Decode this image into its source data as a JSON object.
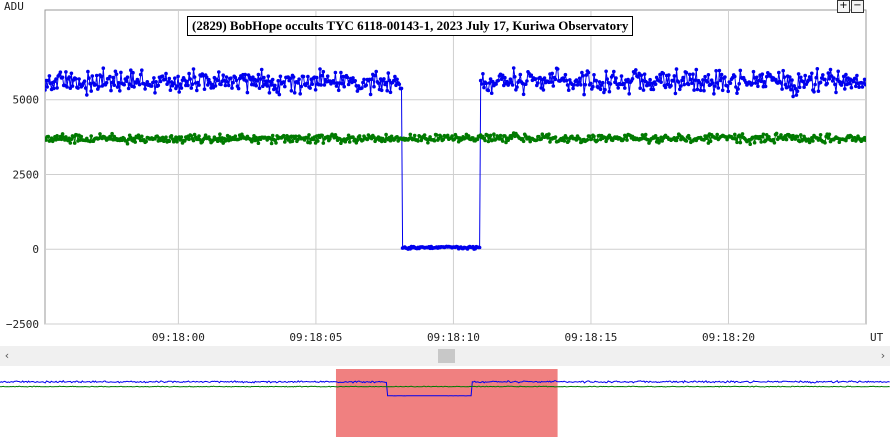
{
  "chart_data": {
    "type": "line",
    "title": "(2829) BobHope occults TYC 6118-00143-1, 2023 July 17, Kuriwa Observatory",
    "ylabel": "ADU",
    "xlabel": "UT",
    "ylim": [
      -2500,
      8000
    ],
    "y_ticks": [
      "5000",
      "2500",
      "0",
      "−2500"
    ],
    "y_tick_values": [
      5000,
      2500,
      0,
      -2500
    ],
    "x_ticks": [
      "09:18:00",
      "09:18:05",
      "09:18:10",
      "09:18:15",
      "09:18:20"
    ],
    "x_tick_seconds": [
      0,
      5,
      10,
      15,
      20
    ],
    "xlim_seconds": [
      -4.85,
      25.0
    ],
    "grid": true,
    "series": [
      {
        "color": "#0000ee",
        "baseline": 5600,
        "noise": 330,
        "drop_start_s": 8.15,
        "drop_end_s": 10.95,
        "drop_level": 50
      },
      {
        "color": "#007a00",
        "baseline": 3700,
        "noise": 130
      }
    ]
  },
  "controls": {
    "zoom_in": "+",
    "zoom_out": "−",
    "scroll_left": "‹",
    "scroll_right": "›"
  },
  "overview": {
    "highlight_color": "#f08080",
    "highlight_start_frac": 0.3775,
    "highlight_end_frac": 0.6265
  }
}
